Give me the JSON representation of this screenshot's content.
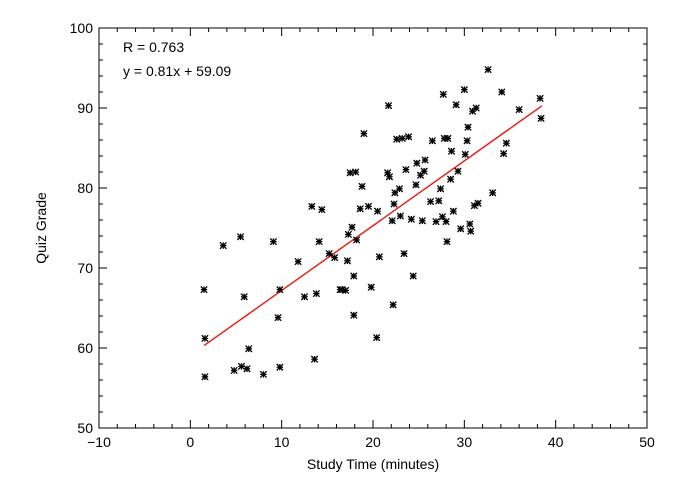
{
  "chart_data": {
    "type": "scatter",
    "xlabel": "Study Time (minutes)",
    "ylabel": "Quiz Grade",
    "xlim": [
      -10,
      50
    ],
    "ylim": [
      50,
      100
    ],
    "xticks": [
      -10,
      0,
      10,
      20,
      30,
      40,
      50
    ],
    "yticks": [
      50,
      60,
      70,
      80,
      90,
      100
    ],
    "xtick_labels": [
      "−10",
      "0",
      "10",
      "20",
      "30",
      "40",
      "50"
    ],
    "ytick_labels": [
      "50",
      "60",
      "70",
      "80",
      "90",
      "100"
    ],
    "grid": false,
    "marker_color": "#000000",
    "fit_color": "#e8221b",
    "annotations": [
      "R = 0.763",
      "y = 0.81x + 59.09"
    ],
    "fit_line": {
      "slope": 0.81,
      "intercept": 59.09,
      "x_range": [
        1.5,
        38.5
      ]
    },
    "points": [
      [
        1.5,
        67.3
      ],
      [
        1.6,
        61.2
      ],
      [
        1.6,
        56.4
      ],
      [
        3.6,
        72.8
      ],
      [
        4.8,
        57.2
      ],
      [
        5.5,
        73.9
      ],
      [
        5.6,
        57.7
      ],
      [
        5.9,
        66.4
      ],
      [
        6.2,
        57.4
      ],
      [
        6.4,
        59.9
      ],
      [
        8.0,
        56.7
      ],
      [
        9.1,
        73.3
      ],
      [
        9.6,
        63.8
      ],
      [
        9.8,
        67.3
      ],
      [
        9.8,
        57.6
      ],
      [
        11.8,
        70.8
      ],
      [
        12.5,
        66.4
      ],
      [
        13.3,
        77.7
      ],
      [
        13.6,
        58.6
      ],
      [
        13.8,
        66.8
      ],
      [
        14.1,
        73.3
      ],
      [
        14.4,
        77.3
      ],
      [
        15.2,
        71.8
      ],
      [
        15.8,
        71.3
      ],
      [
        16.4,
        67.3
      ],
      [
        16.6,
        67.3
      ],
      [
        17.0,
        67.2
      ],
      [
        17.2,
        70.9
      ],
      [
        17.3,
        74.2
      ],
      [
        17.5,
        81.9
      ],
      [
        17.7,
        75.1
      ],
      [
        17.9,
        64.1
      ],
      [
        17.9,
        69.0
      ],
      [
        18.1,
        82.0
      ],
      [
        18.2,
        73.5
      ],
      [
        18.6,
        77.4
      ],
      [
        18.8,
        80.2
      ],
      [
        19.0,
        86.8
      ],
      [
        19.5,
        77.7
      ],
      [
        19.8,
        67.6
      ],
      [
        20.4,
        61.3
      ],
      [
        20.5,
        77.1
      ],
      [
        20.7,
        71.4
      ],
      [
        21.6,
        81.9
      ],
      [
        21.7,
        90.3
      ],
      [
        21.8,
        81.4
      ],
      [
        22.1,
        75.9
      ],
      [
        22.2,
        65.4
      ],
      [
        22.3,
        78.0
      ],
      [
        22.4,
        79.4
      ],
      [
        22.6,
        86.1
      ],
      [
        22.9,
        79.9
      ],
      [
        23.0,
        76.5
      ],
      [
        23.2,
        86.2
      ],
      [
        23.4,
        71.8
      ],
      [
        23.6,
        82.3
      ],
      [
        23.9,
        86.4
      ],
      [
        24.2,
        76.1
      ],
      [
        24.4,
        69.0
      ],
      [
        24.7,
        80.4
      ],
      [
        24.8,
        83.1
      ],
      [
        25.2,
        81.6
      ],
      [
        25.4,
        75.9
      ],
      [
        25.6,
        82.1
      ],
      [
        25.7,
        83.5
      ],
      [
        26.3,
        78.3
      ],
      [
        26.5,
        85.9
      ],
      [
        26.9,
        75.8
      ],
      [
        27.2,
        78.4
      ],
      [
        27.4,
        79.9
      ],
      [
        27.6,
        76.4
      ],
      [
        27.7,
        91.7
      ],
      [
        27.8,
        86.2
      ],
      [
        28.0,
        75.8
      ],
      [
        28.1,
        73.3
      ],
      [
        28.2,
        86.2
      ],
      [
        28.5,
        81.1
      ],
      [
        28.6,
        84.6
      ],
      [
        28.8,
        77.1
      ],
      [
        29.1,
        90.4
      ],
      [
        29.3,
        82.1
      ],
      [
        29.6,
        74.9
      ],
      [
        30.0,
        92.3
      ],
      [
        30.1,
        84.2
      ],
      [
        30.3,
        85.9
      ],
      [
        30.4,
        87.6
      ],
      [
        30.6,
        75.5
      ],
      [
        30.7,
        74.6
      ],
      [
        30.9,
        89.6
      ],
      [
        31.1,
        77.8
      ],
      [
        31.3,
        90.0
      ],
      [
        31.5,
        78.1
      ],
      [
        32.6,
        94.8
      ],
      [
        33.1,
        79.4
      ],
      [
        34.1,
        92.0
      ],
      [
        34.3,
        84.3
      ],
      [
        34.6,
        85.6
      ],
      [
        36.0,
        89.8
      ],
      [
        38.3,
        91.2
      ],
      [
        38.4,
        88.7
      ]
    ]
  }
}
